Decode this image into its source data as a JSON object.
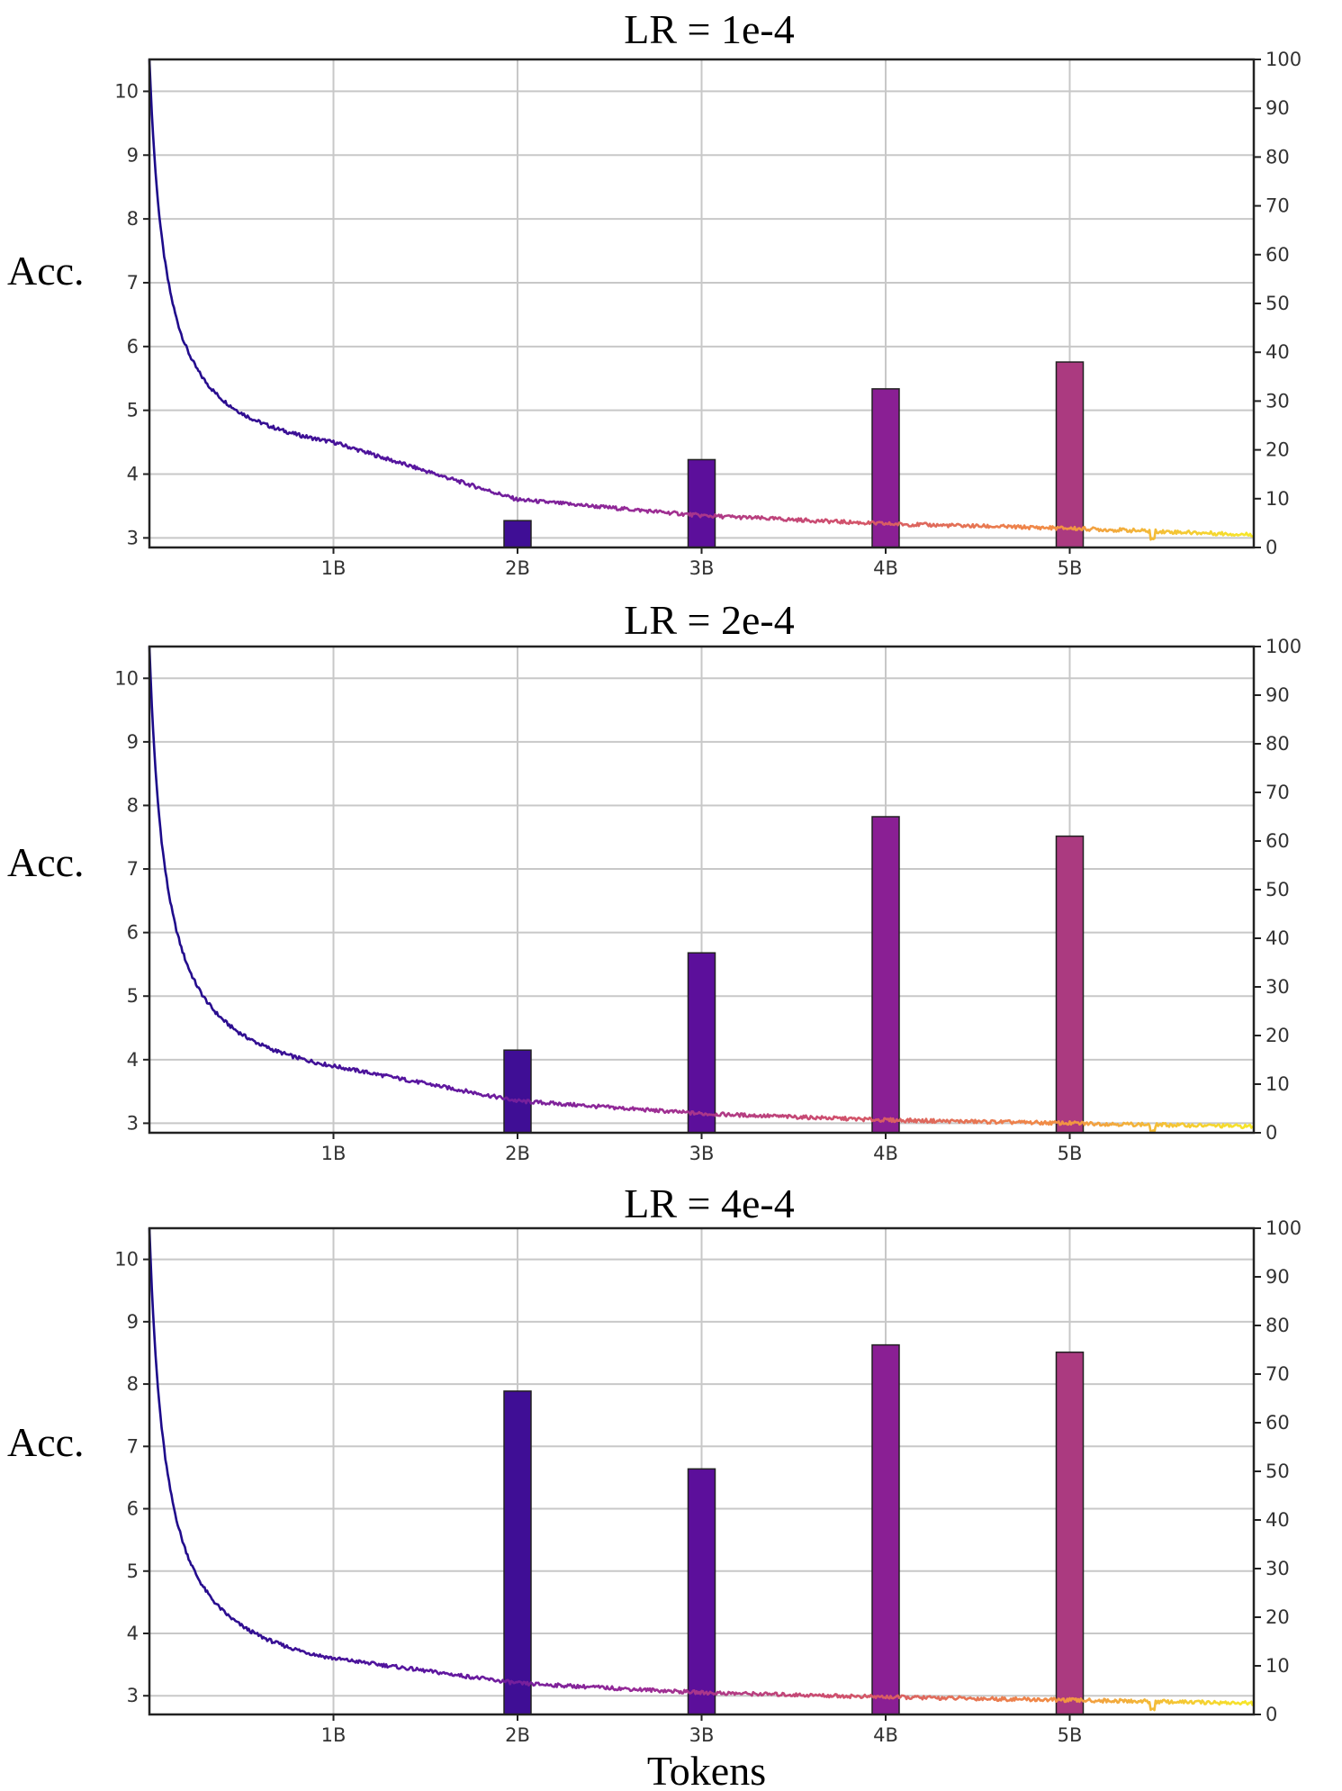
{
  "chart_data": [
    {
      "type": "bar+line",
      "title": "LR = 1e-4",
      "ylabel": "Acc.",
      "xlabel": "",
      "x_ticks": [
        "1B",
        "2B",
        "3B",
        "4B",
        "5B"
      ],
      "x_range_B": [
        0,
        6
      ],
      "left_axis": {
        "ylim": [
          2.85,
          10.5
        ],
        "ticks": [
          3,
          4,
          5,
          6,
          7,
          8,
          9,
          10
        ]
      },
      "right_axis": {
        "ylim": [
          0,
          100
        ],
        "ticks": [
          0,
          10,
          20,
          30,
          40,
          50,
          60,
          70,
          80,
          90,
          100
        ]
      },
      "loss_curve": {
        "start": 10.5,
        "end": 3.05,
        "x_at_1B": 4.5,
        "x_at_2B": 3.6,
        "x_at_3B": 3.35,
        "x_at_4B": 3.22,
        "x_at_5B": 3.15
      },
      "bars": [
        {
          "x": "2B",
          "value": 5.5,
          "color": "#3f0e95"
        },
        {
          "x": "3B",
          "value": 18,
          "color": "#5c0f9b"
        },
        {
          "x": "4B",
          "value": 32.5,
          "color": "#8a1f94"
        },
        {
          "x": "5B",
          "value": 38,
          "color": "#ab3a80"
        }
      ]
    },
    {
      "type": "bar+line",
      "title": "LR = 2e-4",
      "ylabel": "Acc.",
      "xlabel": "",
      "x_ticks": [
        "1B",
        "2B",
        "3B",
        "4B",
        "5B"
      ],
      "x_range_B": [
        0,
        6
      ],
      "left_axis": {
        "ylim": [
          2.85,
          10.5
        ],
        "ticks": [
          3,
          4,
          5,
          6,
          7,
          8,
          9,
          10
        ]
      },
      "right_axis": {
        "ylim": [
          0,
          100
        ],
        "ticks": [
          0,
          10,
          20,
          30,
          40,
          50,
          60,
          70,
          80,
          90,
          100
        ]
      },
      "loss_curve": {
        "start": 10.5,
        "end": 2.95,
        "x_at_1B": 3.9,
        "x_at_2B": 3.35,
        "x_at_3B": 3.15,
        "x_at_4B": 3.05,
        "x_at_5B": 3.0
      },
      "bars": [
        {
          "x": "2B",
          "value": 17,
          "color": "#3f0e95"
        },
        {
          "x": "3B",
          "value": 37,
          "color": "#5c0f9b"
        },
        {
          "x": "4B",
          "value": 65,
          "color": "#8a1f94"
        },
        {
          "x": "5B",
          "value": 61,
          "color": "#ab3a80"
        }
      ]
    },
    {
      "type": "bar+line",
      "title": "LR = 4e-4",
      "ylabel": "Acc.",
      "xlabel": "Tokens",
      "x_ticks": [
        "1B",
        "2B",
        "3B",
        "4B",
        "5B"
      ],
      "x_range_B": [
        0,
        6
      ],
      "left_axis": {
        "ylim": [
          2.7,
          10.5
        ],
        "ticks": [
          3,
          4,
          5,
          6,
          7,
          8,
          9,
          10
        ]
      },
      "right_axis": {
        "ylim": [
          0,
          100
        ],
        "ticks": [
          0,
          10,
          20,
          30,
          40,
          50,
          60,
          70,
          80,
          90,
          100
        ]
      },
      "loss_curve": {
        "start": 10.5,
        "end": 2.88,
        "x_at_1B": 3.6,
        "x_at_2B": 3.2,
        "x_at_3B": 3.05,
        "x_at_4B": 2.98,
        "x_at_5B": 2.93
      },
      "bars": [
        {
          "x": "2B",
          "value": 66.5,
          "color": "#3f0e95"
        },
        {
          "x": "3B",
          "value": 50.5,
          "color": "#5c0f9b"
        },
        {
          "x": "4B",
          "value": 76,
          "color": "#8a1f94"
        },
        {
          "x": "5B",
          "value": 74.5,
          "color": "#ab3a80"
        }
      ]
    }
  ]
}
